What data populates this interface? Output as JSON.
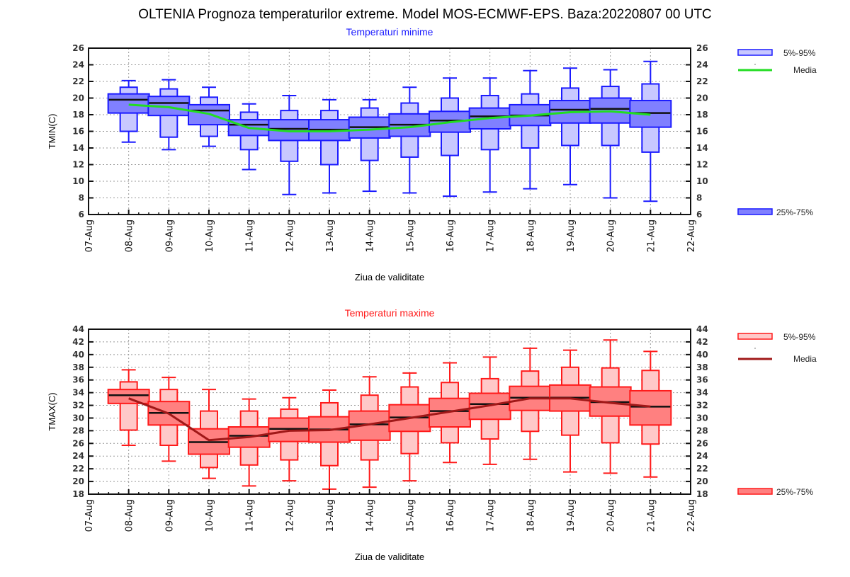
{
  "title": "OLTENIA  Prognoza temperaturilor extreme.  Model MOS-ECMWF-EPS. Baza:20220807 00 UTC",
  "chart_data": [
    {
      "type": "box",
      "title": "Temperaturi minime",
      "title_color": "#1a1aff",
      "xlabel": "Ziua de validitate",
      "ylabel": "TMIN(C)",
      "ylim": [
        6,
        26
      ],
      "yticks": [
        6,
        8,
        10,
        12,
        14,
        16,
        18,
        20,
        22,
        24,
        26
      ],
      "x_ticks": [
        "07-Aug",
        "08-Aug",
        "09-Aug",
        "10-Aug",
        "11-Aug",
        "12-Aug",
        "13-Aug",
        "14-Aug",
        "15-Aug",
        "16-Aug",
        "17-Aug",
        "18-Aug",
        "19-Aug",
        "20-Aug",
        "21-Aug",
        "22-Aug"
      ],
      "grid": true,
      "colors": {
        "box_stroke": "#1a1aff",
        "outer_fill": "#c8c8ff",
        "inner_fill": "#8080ff",
        "mean_line": "#22dd22",
        "median": "#111111"
      },
      "legend": {
        "position": "right",
        "outer": "5%-95%",
        "mean": "Media",
        "inner": "25%-75%"
      },
      "categories": [
        "08-Aug",
        "09-Aug",
        "10-Aug",
        "11-Aug",
        "12-Aug",
        "13-Aug",
        "14-Aug",
        "15-Aug",
        "16-Aug",
        "17-Aug",
        "18-Aug",
        "19-Aug",
        "20-Aug",
        "21-Aug"
      ],
      "whisker_max": [
        22.1,
        22.2,
        21.3,
        19.3,
        20.3,
        19.8,
        19.8,
        21.3,
        22.4,
        22.4,
        23.3,
        23.6,
        23.4,
        24.4
      ],
      "p95": [
        21.3,
        21.1,
        20.1,
        18.3,
        18.5,
        18.5,
        18.8,
        19.4,
        20.0,
        20.3,
        20.5,
        21.2,
        21.4,
        21.7
      ],
      "p75": [
        20.5,
        20.2,
        19.2,
        17.4,
        17.4,
        17.4,
        17.7,
        18.1,
        18.4,
        18.8,
        19.2,
        19.7,
        20.0,
        19.7
      ],
      "median": [
        19.8,
        19.4,
        18.5,
        16.8,
        16.3,
        16.2,
        16.5,
        16.8,
        17.3,
        17.8,
        17.9,
        18.6,
        18.7,
        18.2
      ],
      "p25": [
        18.2,
        17.9,
        16.8,
        15.5,
        14.9,
        14.9,
        15.2,
        15.4,
        15.9,
        16.3,
        16.7,
        17.0,
        17.0,
        16.5
      ],
      "p5": [
        16.0,
        15.3,
        15.4,
        13.8,
        12.4,
        12.0,
        12.5,
        12.9,
        13.1,
        13.8,
        14.0,
        14.3,
        14.3,
        13.5
      ],
      "whisker_min": [
        14.7,
        13.8,
        14.2,
        11.4,
        8.4,
        8.6,
        8.8,
        8.6,
        8.2,
        8.7,
        9.1,
        9.6,
        8.0,
        7.6
      ],
      "mean": [
        19.2,
        18.9,
        18.1,
        16.4,
        16.0,
        16.0,
        16.2,
        16.5,
        17.1,
        17.6,
        17.9,
        18.3,
        18.4,
        18.0
      ]
    },
    {
      "type": "box",
      "title": "Temperaturi maxime",
      "title_color": "#ff1a1a",
      "xlabel": "Ziua de validitate",
      "ylabel": "TMAX(C)",
      "ylim": [
        18,
        44
      ],
      "yticks": [
        18,
        20,
        22,
        24,
        26,
        28,
        30,
        32,
        34,
        36,
        38,
        40,
        42,
        44
      ],
      "x_ticks": [
        "07-Aug",
        "08-Aug",
        "09-Aug",
        "10-Aug",
        "11-Aug",
        "12-Aug",
        "13-Aug",
        "14-Aug",
        "15-Aug",
        "16-Aug",
        "17-Aug",
        "18-Aug",
        "19-Aug",
        "20-Aug",
        "21-Aug",
        "22-Aug"
      ],
      "grid": true,
      "colors": {
        "box_stroke": "#ff1a1a",
        "outer_fill": "#ffc8c8",
        "inner_fill": "#ff8080",
        "mean_line": "#a01818",
        "median": "#111111"
      },
      "legend": {
        "position": "right",
        "outer": "5%-95%",
        "mean": "Media",
        "inner": "25%-75%"
      },
      "categories": [
        "08-Aug",
        "09-Aug",
        "10-Aug",
        "11-Aug",
        "12-Aug",
        "13-Aug",
        "14-Aug",
        "15-Aug",
        "16-Aug",
        "17-Aug",
        "18-Aug",
        "19-Aug",
        "20-Aug",
        "21-Aug"
      ],
      "whisker_max": [
        37.6,
        36.4,
        34.5,
        33.0,
        33.2,
        34.4,
        36.5,
        37.1,
        38.7,
        39.6,
        41.0,
        40.7,
        42.3,
        40.5
      ],
      "p95": [
        35.7,
        34.5,
        31.1,
        31.1,
        31.4,
        32.4,
        33.6,
        34.9,
        35.6,
        36.2,
        37.4,
        38.0,
        37.9,
        37.5
      ],
      "p75": [
        34.5,
        32.6,
        28.3,
        28.6,
        30.0,
        30.2,
        31.1,
        32.1,
        33.1,
        33.9,
        35.0,
        35.2,
        34.9,
        34.3
      ],
      "median": [
        33.6,
        30.8,
        26.2,
        27.2,
        28.3,
        28.2,
        29.0,
        30.1,
        31.1,
        32.2,
        33.2,
        33.2,
        32.5,
        31.8
      ],
      "p25": [
        32.3,
        28.9,
        24.3,
        25.4,
        26.3,
        26.2,
        26.5,
        27.9,
        28.6,
        29.8,
        31.2,
        31.1,
        30.3,
        28.9
      ],
      "p5": [
        28.1,
        25.7,
        22.2,
        22.6,
        23.4,
        22.5,
        23.4,
        24.4,
        26.1,
        26.7,
        27.9,
        27.3,
        26.1,
        25.9
      ],
      "whisker_min": [
        25.7,
        23.2,
        20.5,
        19.3,
        20.1,
        18.8,
        19.1,
        20.1,
        23.0,
        22.7,
        23.5,
        21.5,
        21.3,
        20.7
      ],
      "mean": [
        33.1,
        30.7,
        26.5,
        27.0,
        28.0,
        28.1,
        29.0,
        30.0,
        31.0,
        32.0,
        33.1,
        33.1,
        32.4,
        31.8
      ]
    }
  ]
}
